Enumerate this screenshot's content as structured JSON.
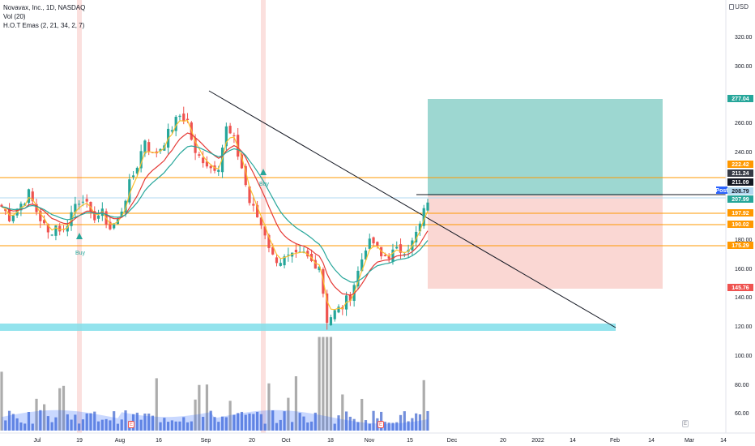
{
  "header": {
    "title": "Novavax, Inc., 1D, NASDAQ",
    "volume_indicator": "Vol (20)",
    "ema_indicator": "H.O.T Emas (2, 21, 34, 2, 7)"
  },
  "currency": "USD",
  "price_axis": {
    "ticks": [
      "320.00",
      "300.00",
      "260.00",
      "240.00",
      "180.00",
      "160.00",
      "140.00",
      "120.00",
      "100.00",
      "80.00",
      "60.00"
    ]
  },
  "time_axis": {
    "ticks": [
      "Jul",
      "19",
      "Aug",
      "16",
      "Sep",
      "20",
      "Oct",
      "18",
      "Nov",
      "15",
      "Dec",
      "20",
      "2022",
      "14",
      "Feb",
      "14",
      "Mar",
      "14"
    ]
  },
  "price_tags": [
    {
      "label": "277.04",
      "color": "#26a69a"
    },
    {
      "label": "222.42",
      "color": "#ff9800"
    },
    {
      "label": "211.24",
      "color": "#363a45"
    },
    {
      "label": "211.09",
      "color": "#131722"
    },
    {
      "label": "208.79",
      "color": "#b2d8f0"
    },
    {
      "label": "207.99",
      "color": "#26a69a"
    },
    {
      "label": "197.92",
      "color": "#ff9800"
    },
    {
      "label": "190.02",
      "color": "#ff9800"
    },
    {
      "label": "175.29",
      "color": "#ff9800"
    },
    {
      "label": "145.76",
      "color": "#ef5350"
    }
  ],
  "post_label": "Post",
  "signals": [
    "Buy",
    "Buy"
  ],
  "earnings_badge": "E",
  "chart_data": {
    "type": "candlestick",
    "title": "Novavax, Inc., 1D, NASDAQ",
    "y_unit": "USD",
    "ylim": [
      52,
      338
    ],
    "x_range": [
      "2021-06-18",
      "2022-03-21"
    ],
    "grid": false,
    "candles_approx": [
      {
        "date": "2021-07-01",
        "close": 205
      },
      {
        "date": "2021-07-19",
        "close": 185
      },
      {
        "date": "2021-08-02",
        "close": 198
      },
      {
        "date": "2021-08-16",
        "close": 255
      },
      {
        "date": "2021-09-01",
        "close": 270
      },
      {
        "date": "2021-09-13",
        "close": 238
      },
      {
        "date": "2021-09-21",
        "close": 259
      },
      {
        "date": "2021-10-01",
        "close": 206
      },
      {
        "date": "2021-10-05",
        "close": 166
      },
      {
        "date": "2021-10-18",
        "close": 167
      },
      {
        "date": "2021-10-20",
        "close": 123
      },
      {
        "date": "2021-10-25",
        "close": 135
      },
      {
        "date": "2021-11-01",
        "close": 165
      },
      {
        "date": "2021-11-08",
        "close": 180
      },
      {
        "date": "2021-11-15",
        "close": 172
      },
      {
        "date": "2021-11-22",
        "close": 207.99
      }
    ],
    "horizontal_levels": [
      222.42,
      197.92,
      190.02,
      175.29
    ],
    "position": {
      "entry": 208.79,
      "target": 277.04,
      "stop": 145.76
    },
    "support_zone": [
      118,
      122
    ],
    "trendline": {
      "from": {
        "date": "2021-08-23",
        "price": 278
      },
      "to": {
        "date": "2022-02-01",
        "price": 120
      }
    },
    "volume_axis_max": 80
  }
}
